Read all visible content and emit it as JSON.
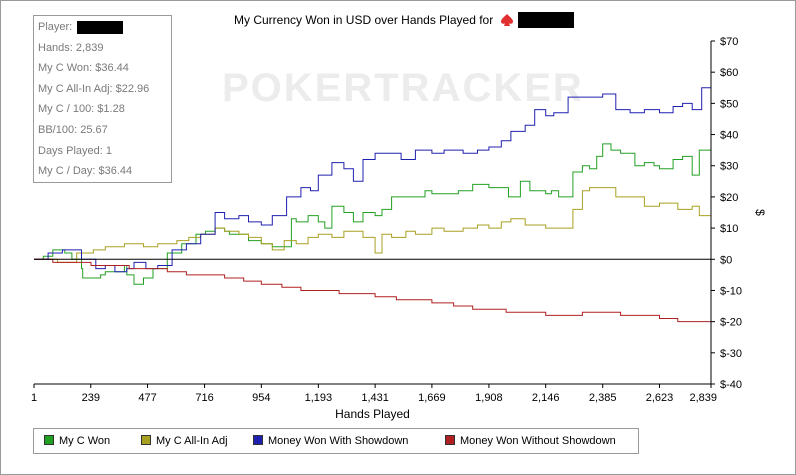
{
  "title_text": "My Currency Won in USD over Hands Played for",
  "watermark": "POKERTRACKER",
  "stats": {
    "player_label": "Player:",
    "lines": [
      "Hands: 2,839",
      "My C Won: $36.44",
      "My C All-In Adj: $22.96",
      "My C / 100: $1.28",
      "BB/100: 25.67",
      "Days Played: 1",
      "My C / Day: $36.44"
    ]
  },
  "colors": {
    "my_c_won": "#22a022",
    "all_in_adj": "#a8a020",
    "showdown": "#2020b0",
    "without_showdown": "#b02020",
    "spade_icon": "#e03030"
  },
  "chart_data": {
    "type": "line",
    "title": "My Currency Won in USD over Hands Played for",
    "xlabel": "Hands Played",
    "ylabel": "$",
    "xlim": [
      1,
      2839
    ],
    "ylim": [
      -40,
      70
    ],
    "x_ticks": [
      1,
      239,
      477,
      716,
      954,
      1193,
      1431,
      1669,
      1908,
      2146,
      2385,
      2623,
      2839
    ],
    "x_tick_labels": [
      "1",
      "239",
      "477",
      "716",
      "954",
      "1,193",
      "1,431",
      "1,669",
      "1,908",
      "2,146",
      "2,385",
      "2,623",
      "2,839"
    ],
    "y_ticks": [
      -40,
      -30,
      -20,
      -10,
      0,
      10,
      20,
      30,
      40,
      50,
      60,
      70
    ],
    "y_tick_labels": [
      "$-40",
      "$-30",
      "$-20",
      "$-10",
      "$0",
      "$10",
      "$20",
      "$30",
      "$40",
      "$50",
      "$60",
      "$70"
    ],
    "grid": "off",
    "legend_position": "bottom",
    "series": [
      {
        "name": "My C Won",
        "color": "#22a022",
        "x": [
          1,
          40,
          80,
          130,
          160,
          200,
          205,
          280,
          300,
          350,
          380,
          390,
          420,
          460,
          500,
          560,
          620,
          680,
          720,
          760,
          800,
          820,
          850,
          900,
          954,
          1000,
          1080,
          1100,
          1150,
          1193,
          1220,
          1250,
          1300,
          1340,
          1380,
          1431,
          1460,
          1500,
          1560,
          1600,
          1640,
          1669,
          1700,
          1780,
          1840,
          1880,
          1908,
          1960,
          1990,
          2040,
          2080,
          2100,
          2146,
          2170,
          2200,
          2260,
          2300,
          2330,
          2360,
          2385,
          2420,
          2460,
          2520,
          2560,
          2600,
          2623,
          2680,
          2720,
          2760,
          2790,
          2839
        ],
        "y": [
          0,
          1,
          3,
          2,
          0,
          -3,
          -6,
          -5,
          -4,
          -4,
          -2,
          -5,
          -8,
          -6,
          -3,
          2,
          5,
          8,
          9,
          10,
          9,
          8,
          8,
          6,
          5,
          4,
          13,
          12,
          14,
          12,
          10,
          17,
          15,
          12,
          15,
          14,
          16,
          20,
          20,
          20,
          22,
          21,
          21,
          22,
          24,
          24,
          23,
          23,
          20,
          25,
          22,
          22,
          21,
          22,
          20,
          28,
          30,
          29,
          33,
          37,
          35,
          34,
          30,
          31,
          30,
          29,
          32,
          33,
          27,
          35,
          36.44
        ]
      },
      {
        "name": "My C All-In Adj",
        "color": "#a8a020",
        "x": [
          1,
          100,
          180,
          250,
          300,
          380,
          460,
          520,
          600,
          650,
          700,
          760,
          800,
          860,
          900,
          954,
          1000,
          1050,
          1100,
          1150,
          1193,
          1250,
          1300,
          1380,
          1431,
          1460,
          1500,
          1560,
          1600,
          1669,
          1720,
          1800,
          1860,
          1908,
          1960,
          2000,
          2060,
          2100,
          2146,
          2200,
          2260,
          2300,
          2330,
          2385,
          2440,
          2500,
          2560,
          2623,
          2700,
          2760,
          2790,
          2839
        ],
        "y": [
          0,
          -1,
          2,
          3,
          4,
          5,
          4,
          5,
          6,
          7,
          8,
          10,
          9,
          8,
          7,
          5,
          3,
          6,
          5,
          7,
          8,
          7,
          9,
          7,
          2,
          8,
          7,
          9,
          8,
          10,
          9,
          10,
          11,
          10,
          12,
          13,
          11,
          11,
          10,
          10,
          16,
          22,
          23,
          23,
          20,
          20,
          17,
          18,
          16,
          17,
          14,
          22.96
        ]
      },
      {
        "name": "Money Won With Showdown",
        "color": "#2020b0",
        "x": [
          1,
          60,
          120,
          200,
          260,
          300,
          340,
          390,
          420,
          470,
          520,
          580,
          640,
          700,
          760,
          800,
          860,
          900,
          954,
          1000,
          1060,
          1120,
          1160,
          1193,
          1250,
          1300,
          1340,
          1380,
          1431,
          1480,
          1540,
          1600,
          1669,
          1720,
          1800,
          1860,
          1908,
          1960,
          2000,
          2060,
          2100,
          2146,
          2180,
          2240,
          2300,
          2385,
          2440,
          2500,
          2560,
          2623,
          2680,
          2720,
          2760,
          2800,
          2839
        ],
        "y": [
          0,
          2,
          3,
          0,
          -3,
          -2,
          -4,
          -3,
          -1,
          -3,
          -2,
          3,
          5,
          8,
          15,
          13,
          14,
          12,
          11,
          14,
          20,
          23,
          22,
          27,
          31,
          29,
          25,
          32,
          34,
          34,
          32,
          35,
          34,
          35,
          34,
          35,
          36,
          38,
          41,
          43,
          48,
          46,
          47,
          52,
          52,
          53,
          48,
          47,
          48,
          47,
          49,
          50,
          48,
          55,
          55
        ]
      },
      {
        "name": "Money Won Without Showdown",
        "color": "#b02020",
        "x": [
          1,
          80,
          160,
          240,
          320,
          400,
          477,
          560,
          640,
          716,
          800,
          880,
          954,
          1040,
          1120,
          1193,
          1280,
          1360,
          1431,
          1520,
          1600,
          1669,
          1760,
          1840,
          1908,
          1980,
          2060,
          2146,
          2220,
          2300,
          2385,
          2460,
          2540,
          2623,
          2700,
          2760,
          2839
        ],
        "y": [
          0,
          -1,
          -1,
          -2,
          -2,
          -3,
          -3,
          -4,
          -5,
          -5,
          -6,
          -7,
          -8,
          -9,
          -10,
          -10,
          -11,
          -11,
          -12,
          -13,
          -13,
          -14,
          -15,
          -16,
          -16,
          -17,
          -17,
          -18,
          -18,
          -17,
          -17,
          -18,
          -18,
          -19,
          -20,
          -20,
          -19
        ]
      }
    ]
  }
}
